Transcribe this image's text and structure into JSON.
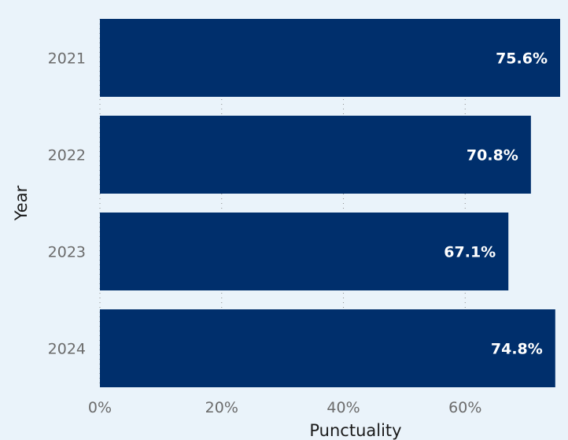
{
  "chart_data": {
    "type": "bar",
    "orientation": "horizontal",
    "categories": [
      "2021",
      "2022",
      "2023",
      "2024"
    ],
    "values": [
      75.6,
      70.8,
      67.1,
      74.8
    ],
    "data_labels": [
      "75.6%",
      "70.8%",
      "67.1%",
      "74.8%"
    ],
    "xlabel": "Punctuality",
    "ylabel": "Year",
    "xlim": [
      0,
      75.6
    ],
    "x_ticks": [
      0,
      20,
      40,
      60
    ],
    "x_tick_labels": [
      "0%",
      "20%",
      "40%",
      "60%"
    ],
    "grid": true,
    "colors": {
      "bar": "#002F6C",
      "background": "#EAF3FA"
    }
  }
}
